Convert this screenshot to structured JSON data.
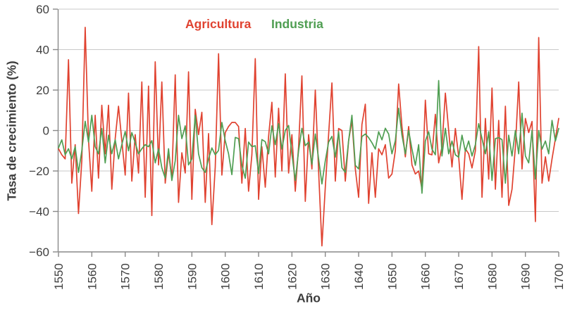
{
  "palette": {
    "agricultura_red": "#e04230",
    "industria_green": "#4f9e52",
    "axis_text": "#3f3f3f",
    "spine_gray": "#898989",
    "gridline_gray": "#c9c9c9",
    "background": "#ffffff"
  },
  "chart_data": {
    "type": "line",
    "title": "",
    "xlabel": "Año",
    "ylabel": "Tasa de crecimiento (%)",
    "x_start": 1550,
    "x_end": 1700,
    "x_tick_step": 10,
    "x_tick_labels": [
      "1550",
      "1560",
      "1570",
      "1580",
      "1590",
      "1600",
      "1610",
      "1620",
      "1630",
      "1640",
      "1650",
      "1660",
      "1670",
      "1680",
      "1690",
      "1700"
    ],
    "ylim": [
      -60,
      60
    ],
    "y_tick_step": 20,
    "y_tick_labels": [
      "60",
      "40",
      "20",
      "0",
      "−20",
      "−40",
      "−60"
    ],
    "grid": "horizontal",
    "legend_position": "top-center",
    "series": [
      {
        "name": "Agricultura",
        "color": "#e04230",
        "values": [
          -9,
          -12,
          -14,
          35,
          -26,
          -7,
          -41,
          -15,
          51,
          -4.5,
          -30,
          7.5,
          -23.5,
          12.5,
          -11.5,
          12.5,
          -29,
          -4,
          12,
          -5,
          -22,
          18.5,
          -25,
          -2,
          -21,
          24,
          -33,
          22,
          -42,
          34,
          -17,
          24,
          -26,
          -11,
          -23.5,
          27.5,
          -35.5,
          -11,
          -21,
          29,
          -34,
          10.5,
          -2,
          9,
          -35.5,
          -1.5,
          -46.5,
          -18,
          38,
          -22,
          -1,
          2,
          4,
          4,
          2,
          -26,
          1,
          -30,
          -12,
          35.5,
          -34,
          -8,
          -28,
          -3,
          14,
          -23,
          11,
          -20,
          28,
          -21,
          -2,
          -30,
          -8,
          27,
          -35,
          -2,
          -19,
          20,
          -20,
          -57,
          -28,
          -2,
          23.5,
          -25,
          1,
          0,
          -25,
          -5,
          5,
          -19,
          -33,
          3,
          13,
          -36,
          -11,
          -33,
          -9,
          -12,
          -7,
          -23.5,
          -21.5,
          -10,
          23,
          2,
          -13,
          2,
          -17,
          -21.5,
          -20,
          -29,
          15,
          -11.5,
          -12,
          8,
          -16,
          -8,
          18.5,
          0,
          -18,
          1,
          -13,
          -34,
          -9,
          -11.5,
          -18.5,
          -10,
          41.5,
          -33,
          6,
          -24,
          21,
          -29,
          5,
          -33,
          12,
          -37,
          -29,
          -8,
          24,
          -19,
          6,
          -1,
          4.5,
          -45,
          46,
          -26,
          -13,
          -25,
          -14,
          -4,
          6
        ]
      },
      {
        "name": "Industria",
        "color": "#4f9e52",
        "values": [
          -8.6,
          -4.6,
          -12,
          -9,
          -14,
          -8,
          -20.7,
          -10,
          4.6,
          -5.7,
          7.5,
          -8,
          -11.5,
          1,
          -16,
          -2.3,
          -11.5,
          -4.6,
          -14,
          -7,
          -0.5,
          -10,
          -1,
          -6,
          -11.5,
          -9,
          -7,
          -8,
          -5,
          -16,
          -9,
          -18.4,
          -23.5,
          -9,
          -24.7,
          -15,
          7.5,
          -4,
          2.3,
          -17,
          -14,
          7.5,
          -11.5,
          -18.4,
          -20.7,
          -14,
          -8.6,
          -12,
          -9.8,
          4,
          -5,
          -11.5,
          -21.8,
          -3.4,
          -4,
          -17.2,
          -23.6,
          -5.7,
          -8,
          -7.5,
          -21.3,
          -4.5,
          -5.5,
          -11.5,
          2.3,
          -7,
          3.4,
          -9.2,
          0,
          2.5,
          -11.5,
          -24.7,
          -10,
          1.1,
          -7.5,
          -5.7,
          -16.7,
          -1.7,
          -14,
          -26.4,
          -15,
          -5.7,
          -2.9,
          -13.2,
          -0.6,
          -18.4,
          -20.7,
          -5,
          7.5,
          -17.2,
          -19,
          -3,
          -1.7,
          -3.5,
          -6,
          -9.2,
          -0.6,
          -4.6,
          1.1,
          -1.7,
          -11.5,
          -5,
          11,
          -2.3,
          -11.5,
          0,
          -9.2,
          -17.2,
          -7,
          -31,
          -5.2,
          -0.6,
          -9.2,
          -12,
          24.7,
          -12.6,
          1.1,
          -11.5,
          -5.2,
          -12,
          -13.2,
          -2.3,
          -10.3,
          -5.2,
          -12.6,
          -7,
          3.4,
          -4,
          -11.5,
          -0.6,
          -24.7,
          -4,
          -3.5,
          -4.5,
          -26,
          -2.3,
          -12.6,
          0,
          -11.5,
          8.6,
          -12.6,
          -16,
          0,
          -24,
          0,
          -9.2,
          -5.2,
          -11.5,
          5,
          -5.2,
          1
        ]
      }
    ]
  }
}
